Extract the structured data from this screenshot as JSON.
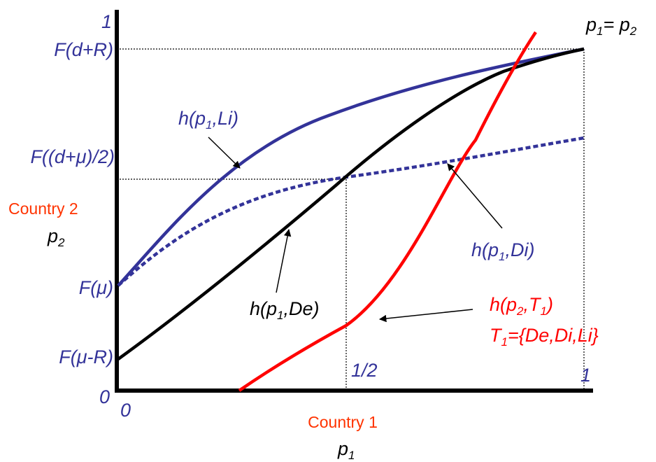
{
  "colors": {
    "axis": "#000000",
    "blue": "#333399",
    "red": "#ff0000",
    "black": "#000000",
    "orange": "#ff3300"
  },
  "y_ticks": {
    "one": "1",
    "f_d_plus_r": "F(d+R)",
    "f_mid": "F((d+μ)/2)",
    "f_mu": "F(μ)",
    "f_mu_minus_r": "F(μ-R)",
    "zero": "0"
  },
  "x_ticks": {
    "zero": "0",
    "half": "1/2",
    "one": "1"
  },
  "axis_titles": {
    "y_country": "Country 2",
    "y_var": "p",
    "y_var_sub": "2",
    "x_country": "Country 1",
    "x_var": "p",
    "x_var_sub": "1"
  },
  "diagonal_label": {
    "p": "p",
    "sub1": "1",
    "eq": "= p",
    "sub2": "2"
  },
  "curve_labels": {
    "li": {
      "pre": "h(p",
      "sub": "1",
      "post": ",Li)"
    },
    "di": {
      "pre": "h(p",
      "sub": "1",
      "post": ",Di)"
    },
    "de": {
      "pre": "h(p",
      "sub": "1",
      "post": ",De)"
    },
    "t1": {
      "pre": "h(p",
      "sub": "2",
      "mid": ",T",
      "sub2": "1",
      "post": ")"
    },
    "t1_set": {
      "pre": "T",
      "sub": "1",
      "post": "={De,Di,Li}"
    }
  }
}
